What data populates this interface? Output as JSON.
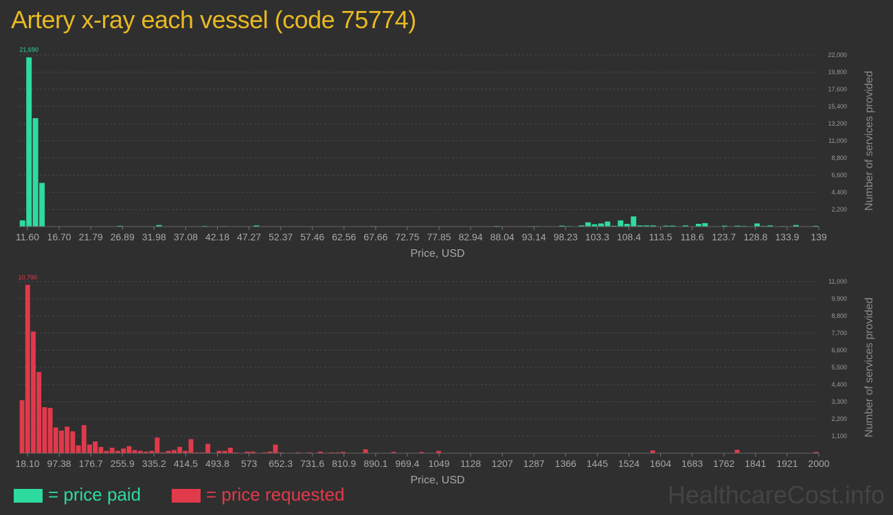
{
  "title": "Artery x-ray each vessel (code 75774)",
  "colors": {
    "paid": "#2ddb9e",
    "requested": "#e03a4b",
    "title": "#e8b923",
    "background": "#2f2f2f"
  },
  "legend": {
    "paid": "= price paid",
    "requested": "= price requested"
  },
  "watermark": "HealthcareCost.info",
  "chart_data": [
    {
      "type": "bar",
      "series": [
        {
          "name": "price paid",
          "color": "#2ddb9e"
        }
      ],
      "xlabel": "Price, USD",
      "ylabel": "Number of services provided",
      "x_tick_labels": [
        "11.60",
        "16.70",
        "21.79",
        "26.89",
        "31.98",
        "37.08",
        "42.18",
        "47.27",
        "52.37",
        "57.46",
        "62.56",
        "67.66",
        "72.75",
        "77.85",
        "82.94",
        "88.04",
        "93.14",
        "98.23",
        "103.3",
        "108.4",
        "113.5",
        "118.6",
        "123.7",
        "128.8",
        "133.9",
        "139"
      ],
      "y_tick_labels": [
        "2,200",
        "4,400",
        "6,600",
        "8,800",
        "11,000",
        "13,200",
        "15,400",
        "17,600",
        "19,800",
        "22,000"
      ],
      "ylim": [
        0,
        22000
      ],
      "peak_label": "21,690",
      "values": [
        800,
        21690,
        13900,
        5600,
        0,
        0,
        0,
        0,
        0,
        0,
        0,
        0,
        0,
        0,
        0,
        100,
        0,
        0,
        0,
        0,
        0,
        200,
        0,
        0,
        0,
        0,
        0,
        0,
        80,
        0,
        0,
        60,
        0,
        0,
        0,
        0,
        150,
        0,
        0,
        0,
        0,
        0,
        0,
        0,
        0,
        0,
        0,
        0,
        0,
        0,
        0,
        0,
        0,
        0,
        60,
        0,
        0,
        0,
        0,
        0,
        0,
        0,
        0,
        0,
        0,
        0,
        0,
        0,
        0,
        0,
        0,
        0,
        0,
        80,
        0,
        0,
        0,
        0,
        60,
        60,
        0,
        0,
        0,
        120,
        60,
        0,
        150,
        550,
        300,
        400,
        650,
        100,
        800,
        350,
        1300,
        150,
        150,
        150,
        0,
        120,
        120,
        0,
        150,
        0,
        350,
        450,
        0,
        0,
        120,
        0,
        120,
        80,
        0,
        400,
        80,
        150,
        0,
        60,
        0,
        200,
        0,
        0,
        100
      ]
    },
    {
      "type": "bar",
      "series": [
        {
          "name": "price requested",
          "color": "#e03a4b"
        }
      ],
      "xlabel": "Price, USD",
      "ylabel": "Number of services provided",
      "x_tick_labels": [
        "18.10",
        "97.38",
        "176.7",
        "255.9",
        "335.2",
        "414.5",
        "493.8",
        "573",
        "652.3",
        "731.6",
        "810.9",
        "890.1",
        "969.4",
        "1049",
        "1128",
        "1207",
        "1287",
        "1366",
        "1445",
        "1524",
        "1604",
        "1683",
        "1762",
        "1841",
        "1921",
        "2000"
      ],
      "y_tick_labels": [
        "1,100",
        "2,200",
        "3,300",
        "4,400",
        "5,500",
        "6,600",
        "7,700",
        "8,800",
        "9,900",
        "11,000"
      ],
      "ylim": [
        0,
        11000
      ],
      "peak_label": "10,790",
      "values": [
        3400,
        10790,
        7800,
        5200,
        2950,
        2900,
        1650,
        1450,
        1700,
        1400,
        500,
        1800,
        550,
        750,
        400,
        150,
        350,
        150,
        300,
        450,
        200,
        150,
        100,
        150,
        1000,
        50,
        150,
        200,
        400,
        150,
        900,
        50,
        50,
        600,
        0,
        150,
        150,
        350,
        50,
        0,
        100,
        100,
        0,
        50,
        100,
        550,
        50,
        0,
        0,
        50,
        0,
        50,
        0,
        100,
        0,
        50,
        50,
        80,
        0,
        0,
        0,
        250,
        0,
        0,
        0,
        0,
        80,
        0,
        0,
        0,
        0,
        80,
        0,
        0,
        150,
        0,
        0,
        0,
        0,
        0,
        0,
        0,
        0,
        0,
        0,
        0,
        0,
        0,
        0,
        0,
        0,
        0,
        0,
        0,
        0,
        0,
        0,
        0,
        0,
        0,
        0,
        0,
        0,
        0,
        0,
        0,
        0,
        0,
        0,
        0,
        0,
        0,
        180,
        0,
        0,
        0,
        0,
        0,
        0,
        0,
        0,
        0,
        0,
        0,
        0,
        0,
        0,
        220,
        0,
        0,
        0,
        0,
        0,
        0,
        0,
        0,
        0,
        0,
        0,
        0,
        0,
        80
      ]
    }
  ]
}
